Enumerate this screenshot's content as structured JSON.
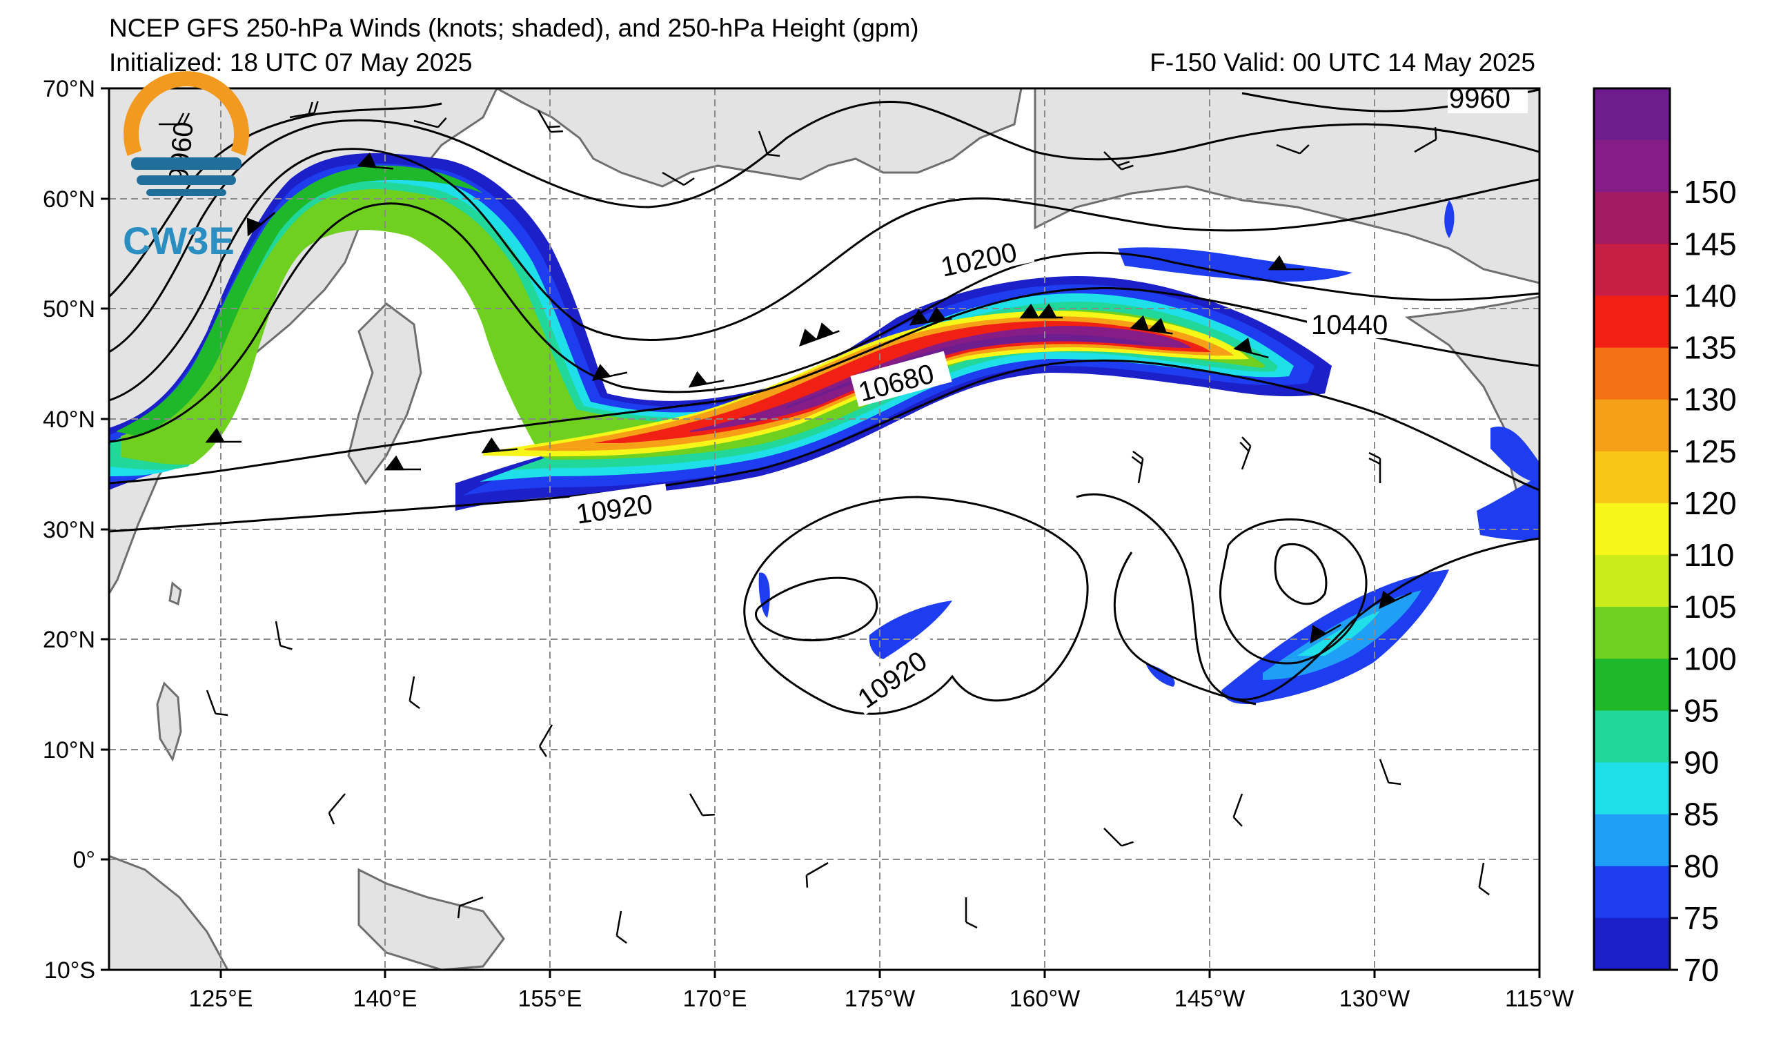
{
  "header": {
    "title": "NCEP GFS 250-hPa Winds (knots; shaded), and 250-hPa Height (gpm)",
    "initialized": "Initialized: 18 UTC 07 May 2025",
    "valid": "F-150  Valid: 00 UTC 14 May 2025"
  },
  "logo": {
    "text": "CW3E"
  },
  "axes": {
    "lat_labels": [
      "70°N",
      "60°N",
      "50°N",
      "40°N",
      "30°N",
      "20°N",
      "10°N",
      "0°",
      "10°S"
    ],
    "lon_labels": [
      "125°E",
      "140°E",
      "155°E",
      "170°E",
      "175°W",
      "160°W",
      "145°W",
      "130°W",
      "115°W"
    ]
  },
  "contour_labels": [
    "9960",
    "10200",
    "10440",
    "10680",
    "10920",
    "10920",
    "9960"
  ],
  "colorbar": {
    "levels": [
      "70",
      "75",
      "80",
      "85",
      "90",
      "95",
      "100",
      "105",
      "110",
      "120",
      "125",
      "130",
      "135",
      "140",
      "145",
      "150"
    ],
    "colors": [
      "#1c20c8",
      "#1e3cf0",
      "#1f9ff5",
      "#1fdfe8",
      "#21d89a",
      "#1fb82a",
      "#6fd020",
      "#c9ec1a",
      "#f6f619",
      "#f7c617",
      "#f5a016",
      "#f47214",
      "#f02015",
      "#c81e46",
      "#a11b63",
      "#861c86",
      "#6e1d8f"
    ]
  }
}
